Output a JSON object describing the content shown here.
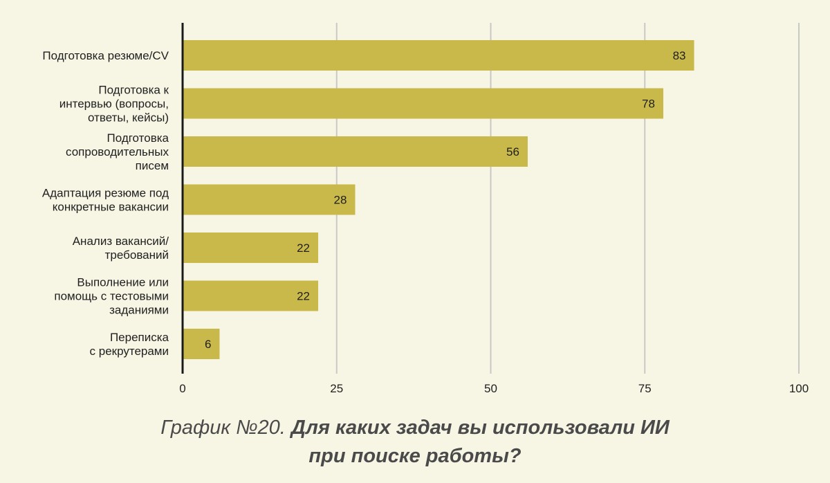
{
  "chart_data": {
    "type": "bar",
    "orientation": "horizontal",
    "categories": [
      "Подготовка резюме/CV",
      "Подготовка к интервью (вопросы, ответы, кейсы)",
      "Подготовка сопроводительных писем",
      "Адаптация резюме под конкретные вакансии",
      "Анализ вакансий/ требований",
      "Выполнение или помощь с тестовыми заданиями",
      "Переписка с рекрутерами"
    ],
    "category_lines": [
      [
        "Подготовка резюме/CV"
      ],
      [
        "Подготовка к",
        "интервью (вопросы,",
        "ответы, кейсы)"
      ],
      [
        "Подготовка",
        "сопроводительных",
        "писем"
      ],
      [
        "Адаптация резюме под",
        "конкретные вакансии"
      ],
      [
        "Анализ вакансий/",
        "требований"
      ],
      [
        "Выполнение или",
        "помощь с тестовыми",
        "заданиями"
      ],
      [
        "Переписка",
        "с рекрутерами"
      ]
    ],
    "values": [
      83,
      78,
      56,
      28,
      22,
      22,
      6
    ],
    "xlim": [
      0,
      100
    ],
    "xticks": [
      "0",
      "25",
      "50",
      "75",
      "100"
    ],
    "grid": "vertical",
    "bar_color": "#c9b84a",
    "grid_color": "#c8c8c4",
    "axis_color": "#1a1a1a"
  },
  "caption": {
    "prefix": "График №20.",
    "line1_bold": "Для каких задач вы использовали ИИ",
    "line2_bold": "при поиске работы?"
  }
}
